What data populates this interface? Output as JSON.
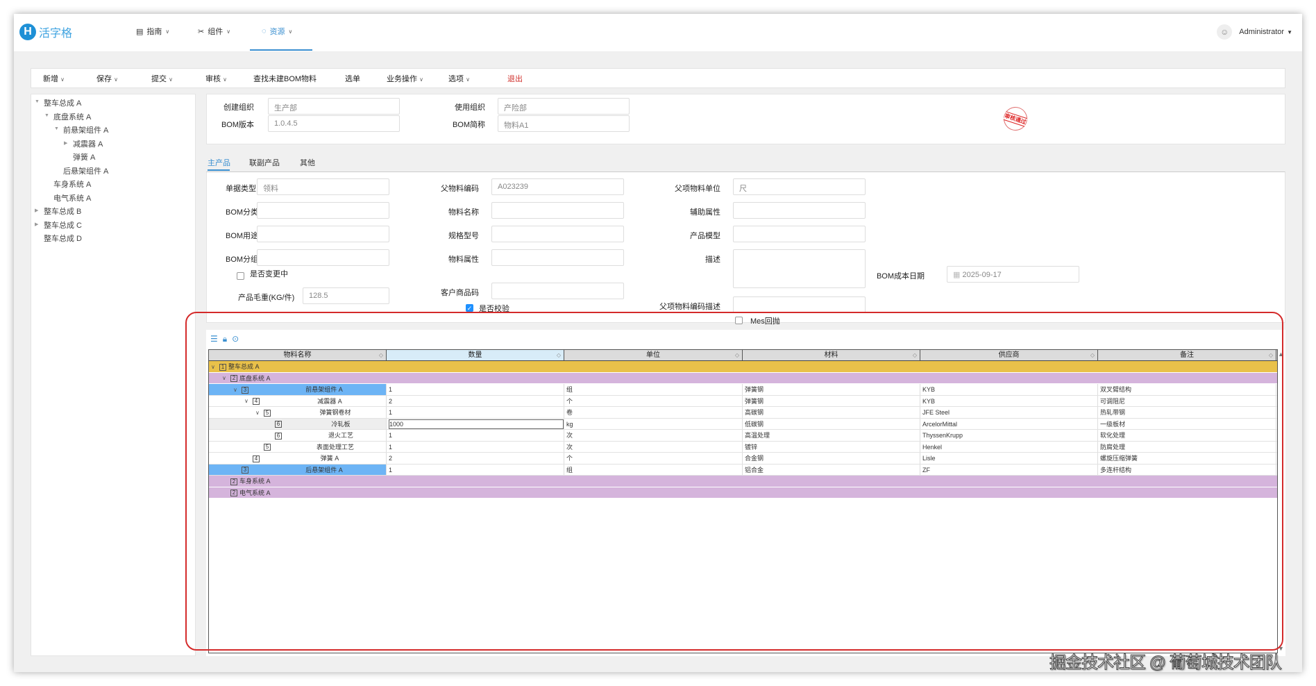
{
  "header": {
    "logo_text": "活字格",
    "nav": [
      {
        "label": "指南",
        "icon": "document-icon"
      },
      {
        "label": "组件",
        "icon": "tools-icon"
      },
      {
        "label": "资源",
        "icon": "droplet-icon",
        "active": true
      }
    ],
    "user": "Administrator"
  },
  "toolbar": {
    "items": [
      {
        "label": "新增",
        "dropdown": true
      },
      {
        "label": "保存",
        "dropdown": true
      },
      {
        "label": "提交",
        "dropdown": true
      },
      {
        "label": "审核",
        "dropdown": true
      },
      {
        "label": "查找未建BOM物料",
        "dropdown": false
      },
      {
        "label": "选单",
        "dropdown": false
      },
      {
        "label": "业务操作",
        "dropdown": true
      },
      {
        "label": "选项",
        "dropdown": true
      },
      {
        "label": "退出",
        "dropdown": false,
        "color": "#d0312d"
      }
    ]
  },
  "tree": {
    "items": [
      {
        "label": "整车总成 A",
        "level": 0,
        "arrow": "down"
      },
      {
        "label": "底盘系统 A",
        "level": 1,
        "arrow": "down"
      },
      {
        "label": "前悬架组件 A",
        "level": 2,
        "arrow": "down"
      },
      {
        "label": "减震器 A",
        "level": 3,
        "arrow": "right"
      },
      {
        "label": "弹簧 A",
        "level": 3,
        "arrow": ""
      },
      {
        "label": "后悬架组件 A",
        "level": 2,
        "arrow": ""
      },
      {
        "label": "车身系统 A",
        "level": 1,
        "arrow": ""
      },
      {
        "label": "电气系统 A",
        "level": 1,
        "arrow": ""
      },
      {
        "label": "整车总成 B",
        "level": 0,
        "arrow": "right"
      },
      {
        "label": "整车总成 C",
        "level": 0,
        "arrow": "right"
      },
      {
        "label": "整车总成 D",
        "level": 0,
        "arrow": ""
      }
    ]
  },
  "header_form": {
    "create_org_label": "创建组织",
    "create_org": "生产部",
    "use_org_label": "使用组织",
    "use_org": "产险部",
    "bom_version_label": "BOM版本",
    "bom_version": "1.0.4.5",
    "bom_short_label": "BOM简称",
    "bom_short": "物料A1",
    "stamp": "审核通过"
  },
  "tabs": [
    {
      "label": "主产品",
      "active": true
    },
    {
      "label": "联副产品"
    },
    {
      "label": "其他"
    }
  ],
  "main_form": {
    "doc_type_label": "单据类型",
    "doc_type": "领料",
    "bom_category_label": "BOM分类",
    "bom_category": "",
    "bom_usage_label": "BOM用途",
    "bom_usage": "",
    "bom_group_label": "BOM分组",
    "bom_group": "",
    "changing_label": "是否变更中",
    "changing": false,
    "gross_weight_label": "产品毛重(KG/件)",
    "gross_weight": "128.5",
    "parent_code_label": "父物料编码",
    "parent_code": "A023239",
    "material_name_label": "物料名称",
    "material_name": "",
    "spec_label": "规格型号",
    "spec": "",
    "material_attr_label": "物料属性",
    "material_attr": "",
    "customer_code_label": "客户商品码",
    "customer_code": "",
    "verify_label": "是否校验",
    "verify": true,
    "parent_unit_label": "父项物料单位",
    "parent_unit": "尺",
    "aux_attr_label": "辅助属性",
    "aux_attr": "",
    "product_model_label": "产品模型",
    "product_model": "",
    "desc_label": "描述",
    "desc": "",
    "parent_code_desc_label": "父项物料编码描述",
    "parent_code_desc": "",
    "mes_label": "Mes回抛",
    "mes": false,
    "cost_date_label": "BOM成本日期",
    "cost_date": "2025-09-17"
  },
  "grid": {
    "toolbar_icons": [
      "tree-list-icon",
      "lock-icon",
      "check-circle-icon"
    ],
    "columns": [
      "物料名称",
      "数量",
      "单位",
      "材料",
      "供应商",
      "备注"
    ],
    "rows": [
      {
        "level": 1,
        "name": "整车总成 A",
        "expanded": true,
        "kind": "l1"
      },
      {
        "level": 2,
        "name": "底盘系统 A",
        "expanded": true,
        "kind": "l2"
      },
      {
        "level": 3,
        "name": "前悬架组件 A",
        "expanded": true,
        "kind": "hl",
        "qty": "1",
        "unit": "组",
        "material": "弹簧钢",
        "supplier": "KYB",
        "note": "双叉臂结构"
      },
      {
        "level": 4,
        "name": "减震器 A",
        "expanded": true,
        "qty": "2",
        "unit": "个",
        "material": "弹簧钢",
        "supplier": "KYB",
        "note": "可调阻尼"
      },
      {
        "level": 5,
        "name": "弹簧钢卷材",
        "expanded": true,
        "qty": "1",
        "unit": "卷",
        "material": "高碳钢",
        "supplier": "JFE Steel",
        "note": "热轧带钢"
      },
      {
        "level": 6,
        "name": "冷轧板",
        "kind": "edit",
        "qty": "1000",
        "unit": "kg",
        "material": "低碳钢",
        "supplier": "ArcelorMittal",
        "note": "一级板材"
      },
      {
        "level": 6,
        "name": "退火工艺",
        "qty": "1",
        "unit": "次",
        "material": "高温处理",
        "supplier": "ThyssenKrupp",
        "note": "软化处理"
      },
      {
        "level": 5,
        "name": "表面处理工艺",
        "qty": "1",
        "unit": "次",
        "material": "镀锌",
        "supplier": "Henkel",
        "note": "防腐处理"
      },
      {
        "level": 4,
        "name": "弹簧 A",
        "qty": "2",
        "unit": "个",
        "material": "合金钢",
        "supplier": "Lisle",
        "note": "螺旋压缩弹簧"
      },
      {
        "level": 3,
        "name": "后悬架组件 A",
        "kind": "hl",
        "qty": "1",
        "unit": "组",
        "material": "铝合金",
        "supplier": "ZF",
        "note": "多连杆结构"
      },
      {
        "level": 2,
        "name": "车身系统 A",
        "kind": "l2"
      },
      {
        "level": 2,
        "name": "电气系统 A",
        "kind": "l2"
      }
    ]
  },
  "watermark": "掘金技术社区 @ 葡萄城技术团队"
}
